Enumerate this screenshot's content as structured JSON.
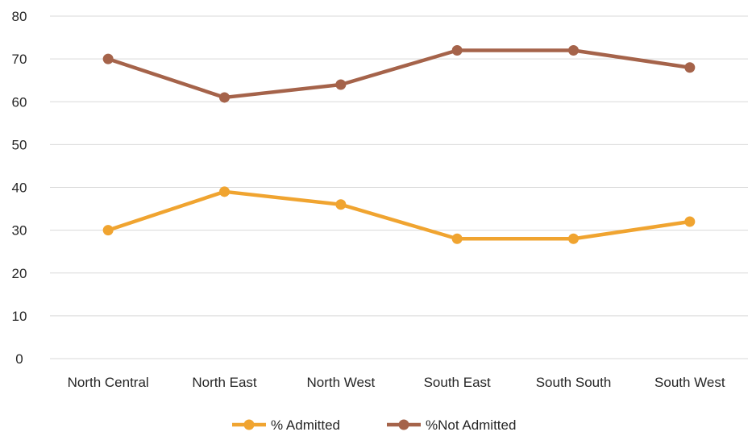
{
  "chart_data": {
    "type": "line",
    "categories": [
      "North Central",
      "North East",
      "North West",
      "South East",
      "South South",
      "South West"
    ],
    "series": [
      {
        "name": "% Admitted",
        "values": [
          30,
          39,
          36,
          28,
          28,
          32
        ],
        "color": "#f0a430"
      },
      {
        "name": "%Not Admitted",
        "values": [
          70,
          61,
          64,
          72,
          72,
          68
        ],
        "color": "#a5634a"
      }
    ],
    "title": "",
    "xlabel": "",
    "ylabel": "",
    "ylim": [
      0,
      80
    ],
    "yticks": [
      0,
      10,
      20,
      30,
      40,
      50,
      60,
      70,
      80
    ],
    "grid": true,
    "gridColor": "#d9d9d9",
    "legend": "bottom"
  }
}
